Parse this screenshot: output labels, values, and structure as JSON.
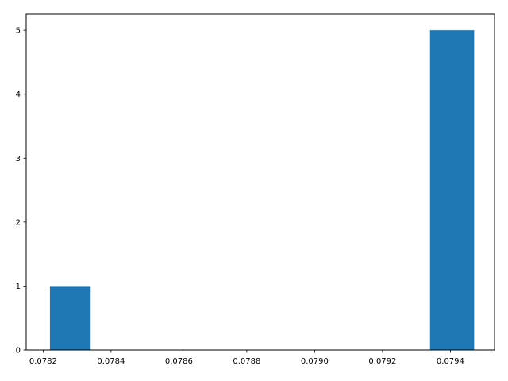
{
  "chart_data": {
    "type": "bar",
    "subtype": "histogram",
    "title": "",
    "xlabel": "",
    "ylabel": "",
    "xlim": [
      0.07815,
      0.07953
    ],
    "ylim": [
      0,
      5.25
    ],
    "grid": false,
    "legend": false,
    "bar_color": "#1f77b4",
    "bins": [
      {
        "x0": 0.07822,
        "x1": 0.07834,
        "count": 1
      },
      {
        "x0": 0.07834,
        "x1": 0.07846,
        "count": 0
      },
      {
        "x0": 0.07846,
        "x1": 0.07859,
        "count": 0
      },
      {
        "x0": 0.07859,
        "x1": 0.07871,
        "count": 0
      },
      {
        "x0": 0.07871,
        "x1": 0.07884,
        "count": 0
      },
      {
        "x0": 0.07884,
        "x1": 0.07896,
        "count": 0
      },
      {
        "x0": 0.07896,
        "x1": 0.07909,
        "count": 0
      },
      {
        "x0": 0.07909,
        "x1": 0.07921,
        "count": 0
      },
      {
        "x0": 0.07921,
        "x1": 0.07934,
        "count": 0
      },
      {
        "x0": 0.07934,
        "x1": 0.07947,
        "count": 5
      }
    ],
    "xticks": [
      {
        "value": 0.0782,
        "label": "0.0782"
      },
      {
        "value": 0.0784,
        "label": "0.0784"
      },
      {
        "value": 0.0786,
        "label": "0.0786"
      },
      {
        "value": 0.0788,
        "label": "0.0788"
      },
      {
        "value": 0.079,
        "label": "0.0790"
      },
      {
        "value": 0.0792,
        "label": "0.0792"
      },
      {
        "value": 0.0794,
        "label": "0.0794"
      }
    ],
    "yticks": [
      {
        "value": 0,
        "label": "0"
      },
      {
        "value": 1,
        "label": "1"
      },
      {
        "value": 2,
        "label": "2"
      },
      {
        "value": 3,
        "label": "3"
      },
      {
        "value": 4,
        "label": "4"
      },
      {
        "value": 5,
        "label": "5"
      }
    ]
  }
}
